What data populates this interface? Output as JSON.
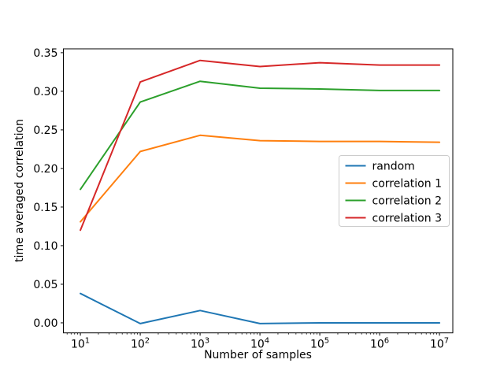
{
  "figure": {
    "background": "#ffffff",
    "axes_edge_color": "#000000",
    "legend_border_color": "#cccccc"
  },
  "chart_data": {
    "type": "line",
    "title": "",
    "xlabel": "Number of samples",
    "ylabel": "time averaged correlation",
    "x_scale": "log",
    "grid": false,
    "xlim": [
      5.2,
      16700000
    ],
    "ylim": [
      -0.013,
      0.355
    ],
    "x": [
      10,
      100,
      1000,
      10000,
      100000,
      1000000,
      10000000
    ],
    "x_tick_exponents": [
      1,
      2,
      3,
      4,
      5,
      6,
      7
    ],
    "x_tick_base": "10",
    "y_ticks": [
      0.0,
      0.05,
      0.1,
      0.15,
      0.2,
      0.25,
      0.3,
      0.35
    ],
    "y_tick_labels": [
      "0.00",
      "0.05",
      "0.10",
      "0.15",
      "0.20",
      "0.25",
      "0.30",
      "0.35"
    ],
    "series": [
      {
        "name": "random",
        "color": "#1f77b4",
        "values": [
          0.038,
          -0.001,
          0.016,
          -0.001,
          0.0,
          0.0,
          0.0
        ]
      },
      {
        "name": "correlation 1",
        "color": "#ff7f0e",
        "values": [
          0.131,
          0.222,
          0.243,
          0.236,
          0.235,
          0.235,
          0.234
        ]
      },
      {
        "name": "correlation 2",
        "color": "#2ca02c",
        "values": [
          0.173,
          0.286,
          0.313,
          0.304,
          0.303,
          0.301,
          0.301
        ]
      },
      {
        "name": "correlation 3",
        "color": "#d62728",
        "values": [
          0.12,
          0.312,
          0.34,
          0.332,
          0.337,
          0.334,
          0.334
        ]
      }
    ],
    "legend": {
      "position": "center right",
      "entries": [
        "random",
        "correlation 1",
        "correlation 2",
        "correlation 3"
      ]
    }
  }
}
